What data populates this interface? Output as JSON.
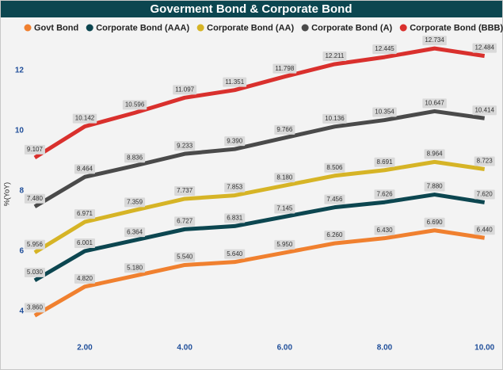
{
  "chart_data": {
    "type": "line",
    "title": "Goverment Bond & Corporate Bond",
    "y_label": "%(YoY)",
    "x": [
      1,
      2,
      3,
      4,
      5,
      6,
      7,
      8,
      9,
      10
    ],
    "xlim": [
      0.9,
      10.1
    ],
    "xticks": [
      {
        "value": 2,
        "label": "2.00"
      },
      {
        "value": 4,
        "label": "4.00"
      },
      {
        "value": 6,
        "label": "6.00"
      },
      {
        "value": 8,
        "label": "8.00"
      },
      {
        "value": 10,
        "label": "10.00"
      }
    ],
    "ylim": [
      3,
      13
    ],
    "yticks": [
      4,
      6,
      8,
      10,
      12
    ],
    "grid": false,
    "legend": "top",
    "series": [
      {
        "name": "Govt Bond",
        "color": "#f0802f",
        "values": [
          3.86,
          4.82,
          5.18,
          5.54,
          5.64,
          5.95,
          6.26,
          6.43,
          6.69,
          6.44
        ],
        "value_labels": [
          "3.860",
          "4.820",
          "5.180",
          "5.540",
          "5.640",
          "5.950",
          "6.260",
          "6.430",
          "6.690",
          "6.440"
        ]
      },
      {
        "name": "Corporate Bond (AAA)",
        "color": "#0c4650",
        "values": [
          5.03,
          6.001,
          6.364,
          6.727,
          6.831,
          7.145,
          7.456,
          7.626,
          7.88,
          7.62
        ],
        "value_labels": [
          "5.030",
          "6.001",
          "6.364",
          "6.727",
          "6.831",
          "7.145",
          "7.456",
          "7.626",
          "7.880",
          "7.620"
        ]
      },
      {
        "name": "Corporate Bond (AA)",
        "color": "#d6b426",
        "values": [
          5.956,
          6.971,
          7.359,
          7.737,
          7.853,
          8.18,
          8.506,
          8.691,
          8.964,
          8.723
        ],
        "value_labels": [
          "5.956",
          "6.971",
          "7.359",
          "7.737",
          "7.853",
          "8.180",
          "8.506",
          "8.691",
          "8.964",
          "8.723"
        ]
      },
      {
        "name": "Corporate Bond (A)",
        "color": "#4a4a4a",
        "values": [
          7.48,
          8.464,
          8.836,
          9.233,
          9.39,
          9.766,
          10.136,
          10.354,
          10.647,
          10.414
        ],
        "value_labels": [
          "7.480",
          "8.464",
          "8.836",
          "9.233",
          "9.390",
          "9.766",
          "10.136",
          "10.354",
          "10.647",
          "10.414"
        ]
      },
      {
        "name": "Corporate Bond (BBB)",
        "color": "#d9302d",
        "values": [
          9.107,
          10.142,
          10.596,
          11.097,
          11.351,
          11.798,
          12.211,
          12.445,
          12.734,
          12.484
        ],
        "value_labels": [
          "9.107",
          "10.142",
          "10.596",
          "11.097",
          "11.351",
          "11.798",
          "12.211",
          "12.445",
          "12.734",
          "12.484"
        ]
      }
    ]
  }
}
